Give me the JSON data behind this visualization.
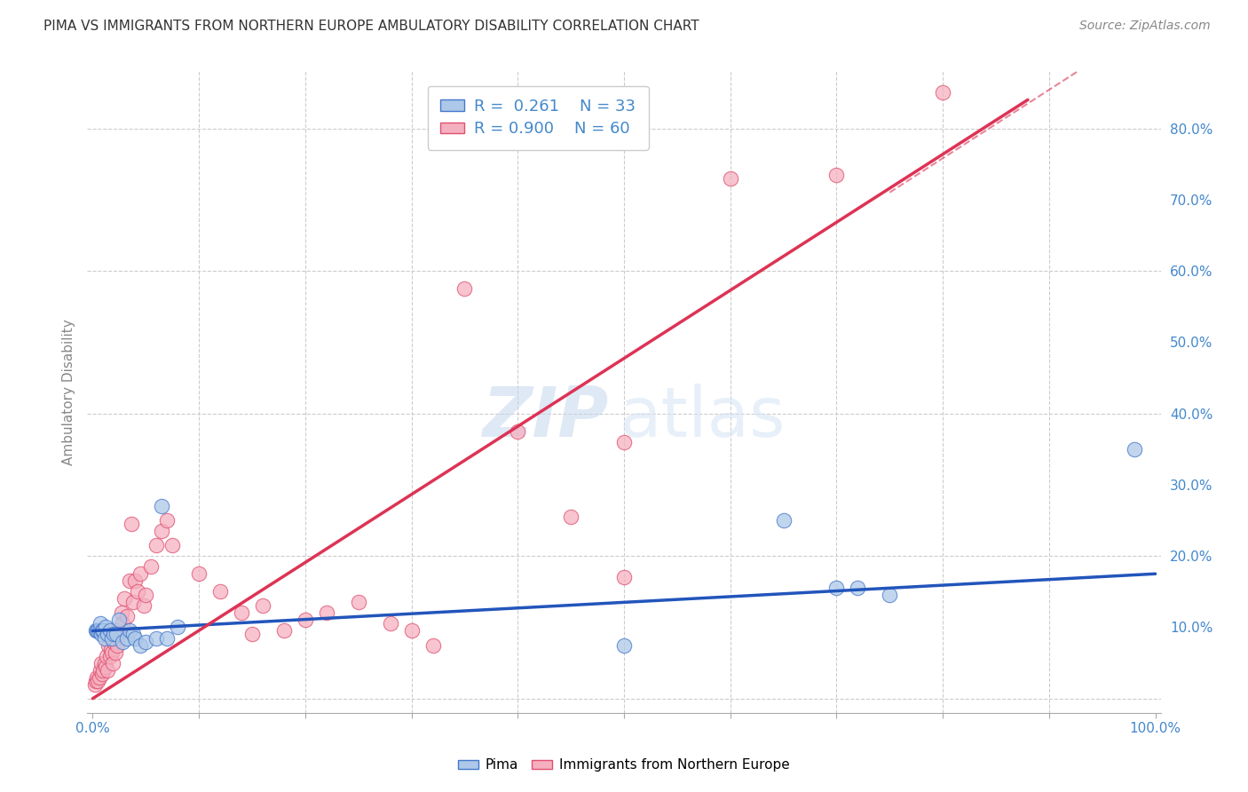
{
  "title": "PIMA VS IMMIGRANTS FROM NORTHERN EUROPE AMBULATORY DISABILITY CORRELATION CHART",
  "source": "Source: ZipAtlas.com",
  "ylabel": "Ambulatory Disability",
  "R_pima": 0.261,
  "N_pima": 33,
  "R_immigrants": 0.9,
  "N_immigrants": 60,
  "pima_color": "#adc8e8",
  "immigrants_color": "#f5b0c0",
  "pima_edge_color": "#4477cc",
  "immigrants_edge_color": "#e05070",
  "pima_line_color": "#2255bb",
  "immigrants_line_color": "#dd3355",
  "background_color": "#ffffff",
  "grid_color": "#cccccc",
  "title_color": "#333333",
  "axis_label_color": "#4488cc",
  "watermark_zip_color": "#c5d8ee",
  "watermark_atlas_color": "#d5e5f5",
  "pima_x": [
    0.003,
    0.004,
    0.005,
    0.006,
    0.007,
    0.008,
    0.009,
    0.01,
    0.011,
    0.012,
    0.014,
    0.016,
    0.018,
    0.02,
    0.022,
    0.025,
    0.028,
    0.032,
    0.035,
    0.038,
    0.04,
    0.045,
    0.05,
    0.06,
    0.065,
    0.07,
    0.08,
    0.5,
    0.65,
    0.7,
    0.72,
    0.75,
    0.98
  ],
  "pima_y": [
    0.095,
    0.095,
    0.095,
    0.095,
    0.105,
    0.09,
    0.095,
    0.095,
    0.085,
    0.1,
    0.09,
    0.095,
    0.085,
    0.09,
    0.09,
    0.11,
    0.08,
    0.085,
    0.095,
    0.09,
    0.085,
    0.075,
    0.08,
    0.085,
    0.27,
    0.085,
    0.1,
    0.075,
    0.25,
    0.155,
    0.155,
    0.145,
    0.35
  ],
  "immigrants_x": [
    0.002,
    0.003,
    0.004,
    0.005,
    0.006,
    0.007,
    0.008,
    0.009,
    0.01,
    0.011,
    0.012,
    0.013,
    0.014,
    0.015,
    0.016,
    0.017,
    0.018,
    0.019,
    0.02,
    0.021,
    0.022,
    0.023,
    0.025,
    0.027,
    0.028,
    0.03,
    0.032,
    0.035,
    0.036,
    0.038,
    0.04,
    0.042,
    0.045,
    0.048,
    0.05,
    0.055,
    0.06,
    0.065,
    0.07,
    0.075,
    0.1,
    0.12,
    0.14,
    0.15,
    0.16,
    0.18,
    0.2,
    0.22,
    0.25,
    0.28,
    0.3,
    0.32,
    0.35,
    0.4,
    0.45,
    0.5,
    0.5,
    0.6,
    0.7,
    0.8
  ],
  "immigrants_y": [
    0.02,
    0.025,
    0.03,
    0.025,
    0.03,
    0.04,
    0.05,
    0.035,
    0.04,
    0.05,
    0.045,
    0.06,
    0.04,
    0.075,
    0.06,
    0.07,
    0.065,
    0.05,
    0.08,
    0.065,
    0.095,
    0.075,
    0.09,
    0.12,
    0.105,
    0.14,
    0.115,
    0.165,
    0.245,
    0.135,
    0.165,
    0.15,
    0.175,
    0.13,
    0.145,
    0.185,
    0.215,
    0.235,
    0.25,
    0.215,
    0.175,
    0.15,
    0.12,
    0.09,
    0.13,
    0.095,
    0.11,
    0.12,
    0.135,
    0.105,
    0.095,
    0.075,
    0.575,
    0.375,
    0.255,
    0.17,
    0.36,
    0.73,
    0.735,
    0.85
  ],
  "xlim": [
    -0.005,
    1.005
  ],
  "ylim": [
    -0.02,
    0.88
  ],
  "xtick_positions": [
    0.0,
    0.1,
    0.2,
    0.3,
    0.4,
    0.5,
    0.6,
    0.7,
    0.8,
    0.9,
    1.0
  ],
  "ytick_positions": [
    0.0,
    0.1,
    0.2,
    0.3,
    0.4,
    0.5,
    0.6,
    0.7,
    0.8
  ],
  "pima_trend_x": [
    0.0,
    1.0
  ],
  "pima_trend_y": [
    0.095,
    0.175
  ],
  "immigrants_trend_x": [
    0.0,
    0.88
  ],
  "immigrants_trend_y": [
    0.0,
    0.84
  ]
}
